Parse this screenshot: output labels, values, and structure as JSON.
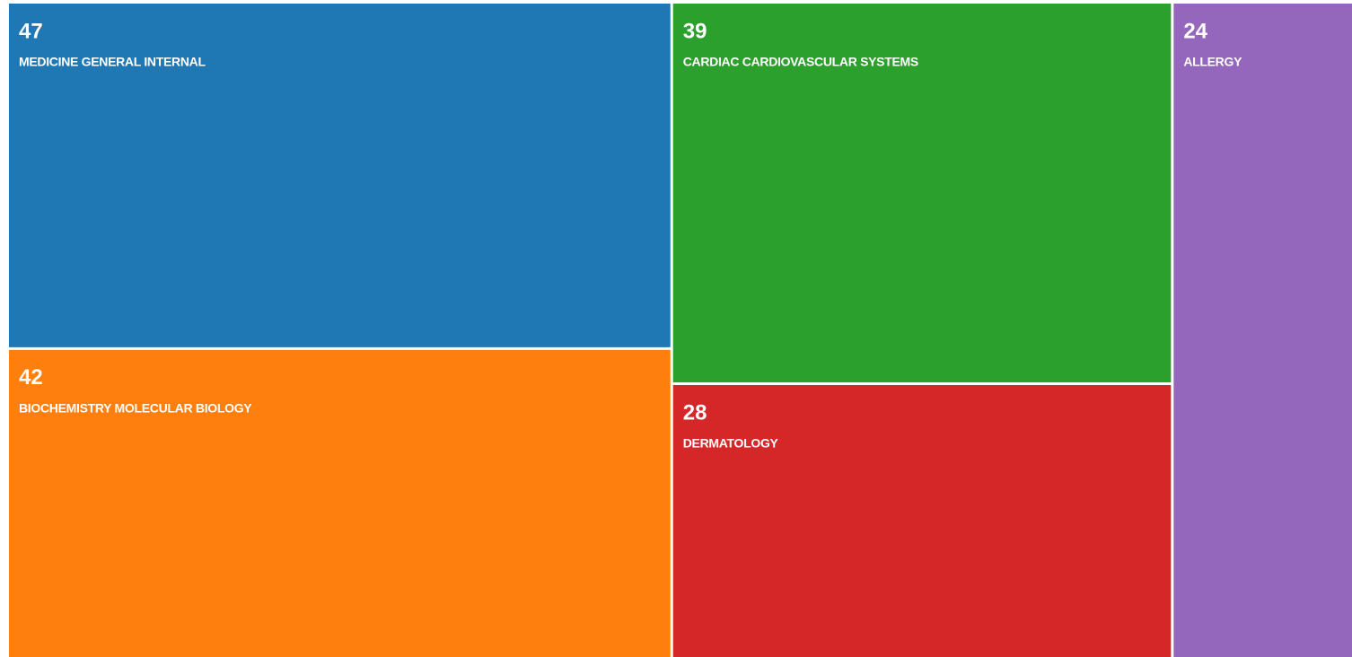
{
  "chart_data": {
    "type": "treemap",
    "categories": [
      "MEDICINE GENERAL INTERNAL",
      "BIOCHEMISTRY MOLECULAR BIOLOGY",
      "CARDIAC CARDIOVASCULAR SYSTEMS",
      "DERMATOLOGY",
      "ALLERGY"
    ],
    "values": [
      47,
      42,
      39,
      28,
      24
    ],
    "colors": [
      "#1f77b4",
      "#ff7f0e",
      "#2ca02c",
      "#d62728",
      "#9467bd"
    ]
  }
}
